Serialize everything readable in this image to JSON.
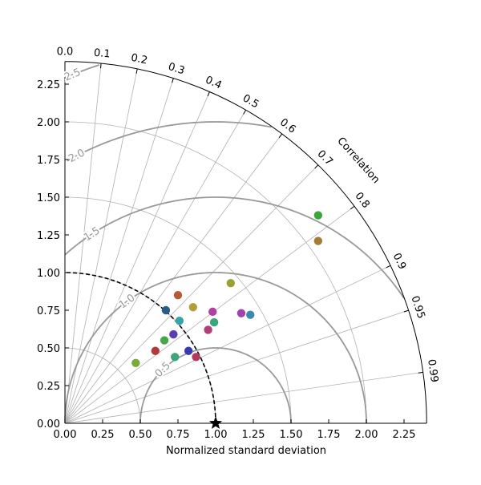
{
  "chart_data": {
    "type": "scatter",
    "subtype": "taylor-diagram",
    "title": "",
    "xlabel": "Normalized standard deviation",
    "angular_label": "Correlation",
    "std_range": [
      0,
      2.4
    ],
    "std_ticks": [
      "0.00",
      "0.25",
      "0.50",
      "0.75",
      "1.00",
      "1.25",
      "1.50",
      "1.75",
      "2.00",
      "2.25"
    ],
    "std_tick_values": [
      0,
      0.25,
      0.5,
      0.75,
      1.0,
      1.25,
      1.5,
      1.75,
      2.0,
      2.25
    ],
    "corr_ticks": [
      "0.0",
      "0.1",
      "0.2",
      "0.3",
      "0.4",
      "0.5",
      "0.6",
      "0.7",
      "0.8",
      "0.9",
      "0.95",
      "0.99"
    ],
    "corr_tick_values": [
      0.0,
      0.1,
      0.2,
      0.3,
      0.4,
      0.5,
      0.6,
      0.7,
      0.8,
      0.9,
      0.95,
      0.99
    ],
    "rms_contours": [
      0.5,
      1.0,
      1.5,
      2.0,
      2.5
    ],
    "rms_labels": [
      "0.5",
      "1.0",
      "1.5",
      "2.0",
      "2.5"
    ],
    "std_arc_values": [
      0.5,
      1.0,
      1.5,
      2.0
    ],
    "reference": {
      "std": 1.0,
      "corr": 1.0
    },
    "grid": true,
    "points": [
      {
        "x": 1.68,
        "y": 1.38,
        "color": "#3aa63a"
      },
      {
        "x": 1.68,
        "y": 1.21,
        "color": "#a57a3a"
      },
      {
        "x": 1.1,
        "y": 0.93,
        "color": "#9aa12e"
      },
      {
        "x": 0.75,
        "y": 0.85,
        "color": "#b45a35"
      },
      {
        "x": 0.85,
        "y": 0.77,
        "color": "#b0a03a"
      },
      {
        "x": 0.67,
        "y": 0.75,
        "color": "#2a5c8a"
      },
      {
        "x": 0.98,
        "y": 0.74,
        "color": "#b53fa0"
      },
      {
        "x": 1.17,
        "y": 0.73,
        "color": "#a23fb3"
      },
      {
        "x": 1.23,
        "y": 0.72,
        "color": "#3a8ab0"
      },
      {
        "x": 0.76,
        "y": 0.68,
        "color": "#35a5a8"
      },
      {
        "x": 0.99,
        "y": 0.67,
        "color": "#3aa67a"
      },
      {
        "x": 0.95,
        "y": 0.62,
        "color": "#b33f78"
      },
      {
        "x": 0.72,
        "y": 0.59,
        "color": "#5a3fb3"
      },
      {
        "x": 0.66,
        "y": 0.55,
        "color": "#4aa64a"
      },
      {
        "x": 0.6,
        "y": 0.48,
        "color": "#b33a3a"
      },
      {
        "x": 0.82,
        "y": 0.48,
        "color": "#3a3ab0"
      },
      {
        "x": 0.73,
        "y": 0.44,
        "color": "#3aa67a"
      },
      {
        "x": 0.87,
        "y": 0.44,
        "color": "#b33a5a"
      },
      {
        "x": 0.47,
        "y": 0.4,
        "color": "#7aaa3a"
      }
    ]
  }
}
